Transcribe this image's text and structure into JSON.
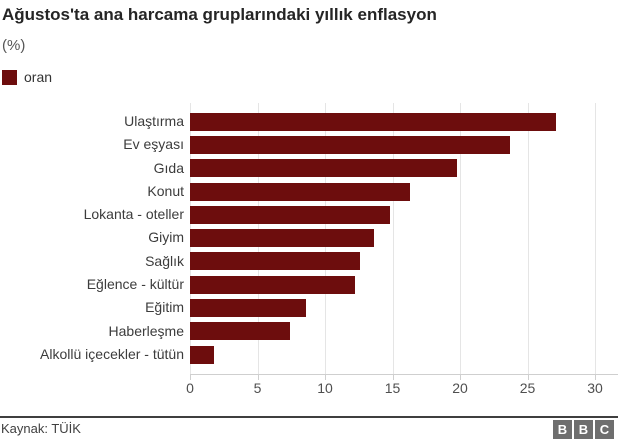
{
  "header": {
    "title": "Ağustos'ta ana harcama gruplarındaki yıllık enflasyon",
    "subtitle": "(%)",
    "legend": {
      "label": "oran",
      "color": "#6d0d0d"
    }
  },
  "chart_data": {
    "type": "bar",
    "orientation": "horizontal",
    "title": "Ağustos'ta ana harcama gruplarındaki yıllık enflasyon",
    "unit_label": "(%)",
    "series_name": "oran",
    "categories": [
      "Ulaştırma",
      "Ev eşyası",
      "Gıda",
      "Konut",
      "Lokanta - oteller",
      "Giyim",
      "Sağlık",
      "Eğlence - kültür",
      "Eğitim",
      "Haberleşme",
      "Alkollü içecekler - tütün"
    ],
    "values": [
      27.1,
      23.7,
      19.8,
      16.3,
      14.8,
      13.6,
      12.6,
      12.2,
      8.6,
      7.4,
      1.8
    ],
    "x_ticks": [
      0,
      5,
      10,
      15,
      20,
      25,
      30
    ],
    "xlim": [
      0,
      30
    ],
    "grid": true,
    "bar_color": "#6d0d0d",
    "gridline_color": "#e5e5e5"
  },
  "footer": {
    "source": "Kaynak: TÜİK",
    "logo_letters": [
      "B",
      "B",
      "C"
    ]
  }
}
